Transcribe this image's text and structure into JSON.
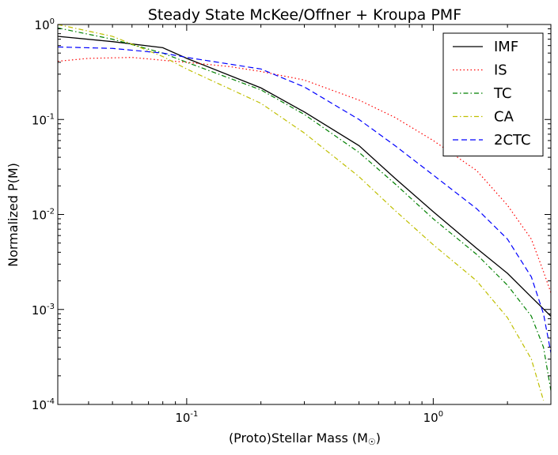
{
  "chart_data": {
    "type": "line",
    "title": "Steady State McKee/Offner + Kroupa PMF",
    "xlabel": "(Proto)Stellar Mass (M",
    "xlabel_symbol": "☉",
    "xlabel_suffix": ")",
    "ylabel": "Normalized P(M)",
    "xscale": "log",
    "yscale": "log",
    "xlim": [
      0.03,
      3.0
    ],
    "ylim": [
      0.0001,
      1.0
    ],
    "x_ticks": [
      {
        "value": 0.1,
        "base": "10",
        "exp": "-1"
      },
      {
        "value": 1.0,
        "base": "10",
        "exp": "0"
      }
    ],
    "y_ticks": [
      {
        "value": 1.0,
        "base": "10",
        "exp": "0"
      },
      {
        "value": 0.1,
        "base": "10",
        "exp": "-1"
      },
      {
        "value": 0.01,
        "base": "10",
        "exp": "-2"
      },
      {
        "value": 0.001,
        "base": "10",
        "exp": "-3"
      },
      {
        "value": 0.0001,
        "base": "10",
        "exp": "-4"
      }
    ],
    "legend_position": "top-right",
    "grid": false,
    "series": [
      {
        "name": "IMF",
        "color": "#000000",
        "dash": "solid",
        "points": [
          [
            0.03,
            0.75
          ],
          [
            0.05,
            0.66
          ],
          [
            0.08,
            0.57
          ],
          [
            0.1,
            0.44
          ],
          [
            0.2,
            0.215
          ],
          [
            0.3,
            0.12
          ],
          [
            0.5,
            0.053
          ],
          [
            0.7,
            0.024
          ],
          [
            1.0,
            0.0107
          ],
          [
            1.5,
            0.0044
          ],
          [
            2.0,
            0.0024
          ],
          [
            2.5,
            0.00135
          ],
          [
            3.0,
            0.00085
          ]
        ]
      },
      {
        "name": "IS",
        "color": "#ff0000",
        "dash": "dotted",
        "points": [
          [
            0.03,
            0.41
          ],
          [
            0.04,
            0.44
          ],
          [
            0.06,
            0.45
          ],
          [
            0.08,
            0.42
          ],
          [
            0.1,
            0.4
          ],
          [
            0.15,
            0.36
          ],
          [
            0.2,
            0.32
          ],
          [
            0.3,
            0.26
          ],
          [
            0.5,
            0.16
          ],
          [
            0.7,
            0.105
          ],
          [
            1.0,
            0.06
          ],
          [
            1.5,
            0.029
          ],
          [
            2.0,
            0.0125
          ],
          [
            2.5,
            0.0055
          ],
          [
            2.8,
            0.0025
          ],
          [
            3.0,
            0.0015
          ]
        ]
      },
      {
        "name": "TC",
        "color": "#008000",
        "dash": "dashdot",
        "points": [
          [
            0.03,
            0.92
          ],
          [
            0.05,
            0.7
          ],
          [
            0.08,
            0.5
          ],
          [
            0.1,
            0.4
          ],
          [
            0.2,
            0.205
          ],
          [
            0.3,
            0.113
          ],
          [
            0.5,
            0.045
          ],
          [
            0.7,
            0.021
          ],
          [
            1.0,
            0.009
          ],
          [
            1.5,
            0.0038
          ],
          [
            2.0,
            0.0018
          ],
          [
            2.5,
            0.00085
          ],
          [
            2.8,
            0.0004
          ],
          [
            3.0,
            0.00014
          ]
        ]
      },
      {
        "name": "CA",
        "color": "#bfbf00",
        "dash": "dashdot",
        "points": [
          [
            0.03,
            1.0
          ],
          [
            0.05,
            0.75
          ],
          [
            0.08,
            0.46
          ],
          [
            0.1,
            0.34
          ],
          [
            0.2,
            0.148
          ],
          [
            0.3,
            0.072
          ],
          [
            0.5,
            0.025
          ],
          [
            0.7,
            0.011
          ],
          [
            1.0,
            0.0048
          ],
          [
            1.5,
            0.002
          ],
          [
            2.0,
            0.00082
          ],
          [
            2.5,
            0.0003
          ],
          [
            2.8,
            0.00011
          ]
        ]
      },
      {
        "name": "2CTC",
        "color": "#0000ff",
        "dash": "dashed",
        "points": [
          [
            0.03,
            0.58
          ],
          [
            0.05,
            0.56
          ],
          [
            0.08,
            0.5
          ],
          [
            0.1,
            0.45
          ],
          [
            0.2,
            0.34
          ],
          [
            0.3,
            0.22
          ],
          [
            0.5,
            0.1
          ],
          [
            0.7,
            0.053
          ],
          [
            1.0,
            0.026
          ],
          [
            1.5,
            0.0115
          ],
          [
            2.0,
            0.0055
          ],
          [
            2.5,
            0.0022
          ],
          [
            2.8,
            0.0009
          ],
          [
            3.0,
            0.00035
          ]
        ]
      }
    ]
  }
}
